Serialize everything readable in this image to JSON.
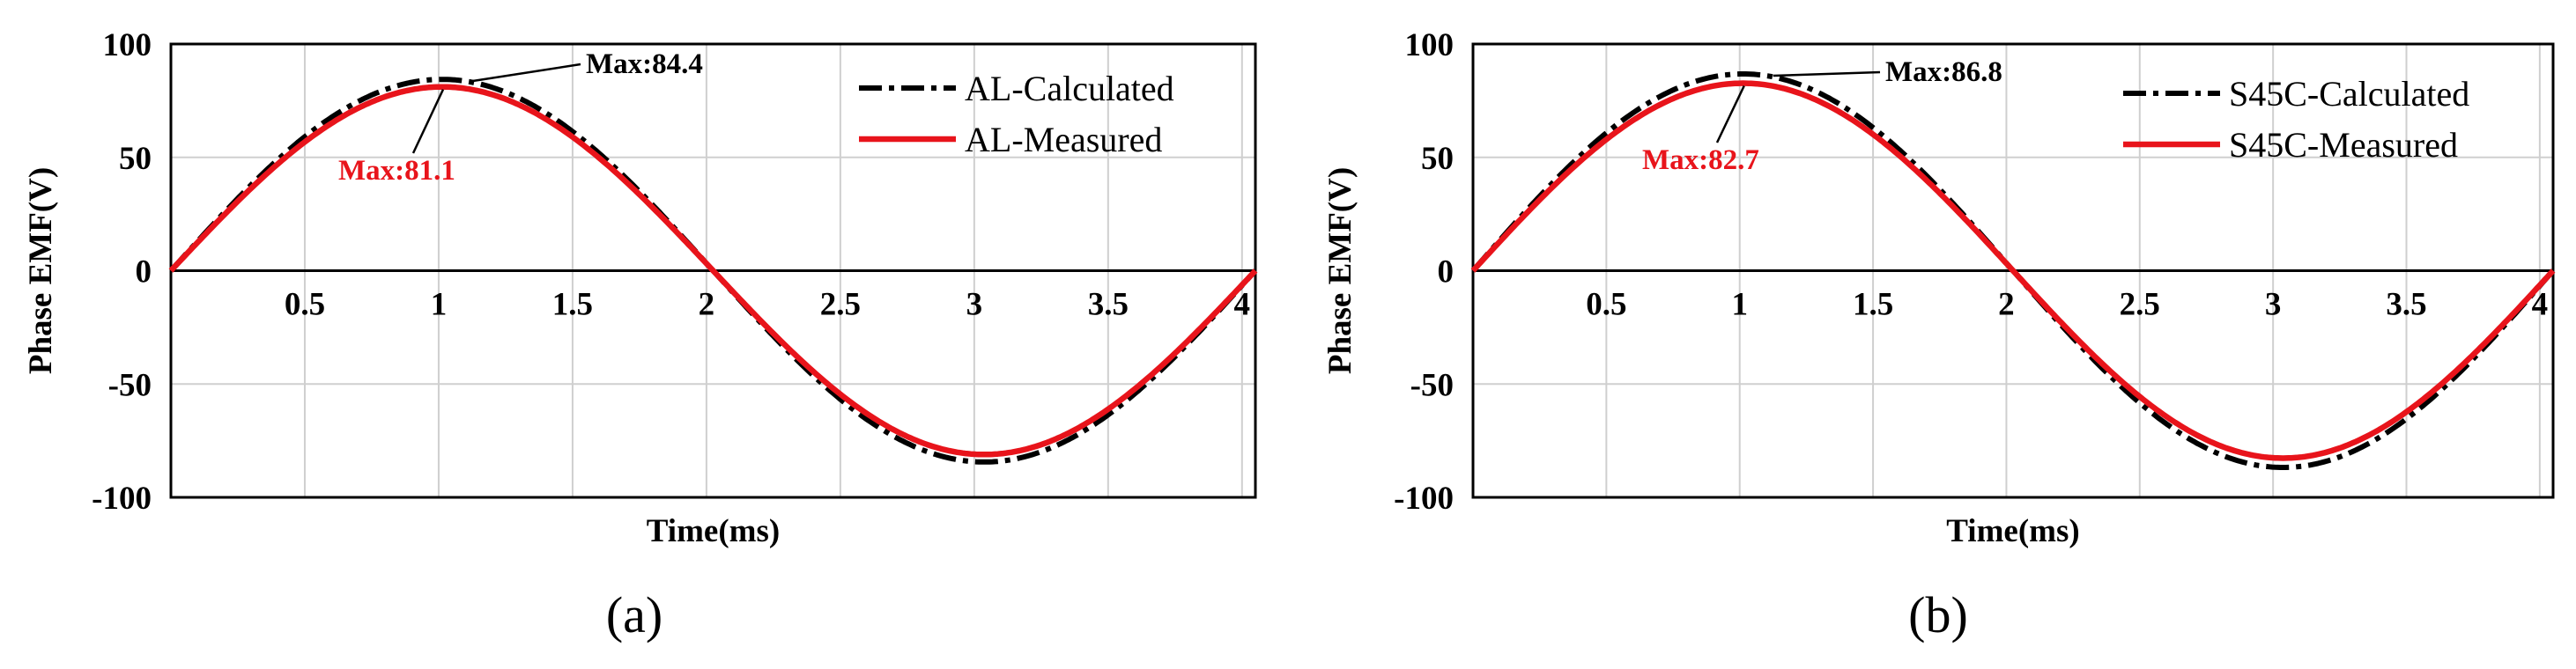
{
  "chart_data": [
    {
      "type": "line",
      "panel_label": "(a)",
      "xlabel": "Time(ms)",
      "ylabel": "Phase EMF(V)",
      "xlim": [
        0,
        4.05
      ],
      "ylim": [
        -100,
        100
      ],
      "xticks": [
        0.5,
        1,
        1.5,
        2,
        2.5,
        3,
        3.5,
        4
      ],
      "xtick_labels": [
        "0.5",
        "1",
        "1.5",
        "2",
        "2.5",
        "3",
        "3.5",
        "4"
      ],
      "yticks": [
        100,
        50,
        0,
        -50,
        -100
      ],
      "ytick_labels": [
        "100",
        "50",
        "0",
        "-50",
        "-100"
      ],
      "grid": true,
      "legend_position": "top-right",
      "series": [
        {
          "name": "AL-Calculated",
          "amplitude": 84.4,
          "period_ms": 4.05,
          "style": "dash-dot",
          "color": "#000000"
        },
        {
          "name": "AL-Measured",
          "amplitude": 81.1,
          "period_ms": 4.05,
          "style": "solid",
          "color": "#e8141b"
        }
      ],
      "annotations": [
        {
          "text": "Max:84.4",
          "x": 1.0,
          "y": 84.4,
          "color": "#000000"
        },
        {
          "text": "Max:81.1",
          "x": 1.0,
          "y": 81.1,
          "color": "#e8141b"
        }
      ]
    },
    {
      "type": "line",
      "panel_label": "(b)",
      "xlabel": "Time(ms)",
      "ylabel": "Phase EMF(V)",
      "xlim": [
        0,
        4.05
      ],
      "ylim": [
        -100,
        100
      ],
      "xticks": [
        0.5,
        1,
        1.5,
        2,
        2.5,
        3,
        3.5,
        4
      ],
      "xtick_labels": [
        "0.5",
        "1",
        "1.5",
        "2",
        "2.5",
        "3",
        "3.5",
        "4"
      ],
      "yticks": [
        100,
        50,
        0,
        -50,
        -100
      ],
      "ytick_labels": [
        "100",
        "50",
        "0",
        "-50",
        "-100"
      ],
      "grid": true,
      "legend_position": "top-right",
      "series": [
        {
          "name": "S45C-Calculated",
          "amplitude": 86.8,
          "period_ms": 4.05,
          "style": "dash-dot",
          "color": "#000000"
        },
        {
          "name": "S45C-Measured",
          "amplitude": 82.7,
          "period_ms": 4.05,
          "style": "solid",
          "color": "#e8141b"
        }
      ],
      "annotations": [
        {
          "text": "Max:86.8",
          "x": 1.0,
          "y": 86.8,
          "color": "#000000"
        },
        {
          "text": "Max:82.7",
          "x": 1.0,
          "y": 82.7,
          "color": "#e8141b"
        }
      ]
    }
  ]
}
